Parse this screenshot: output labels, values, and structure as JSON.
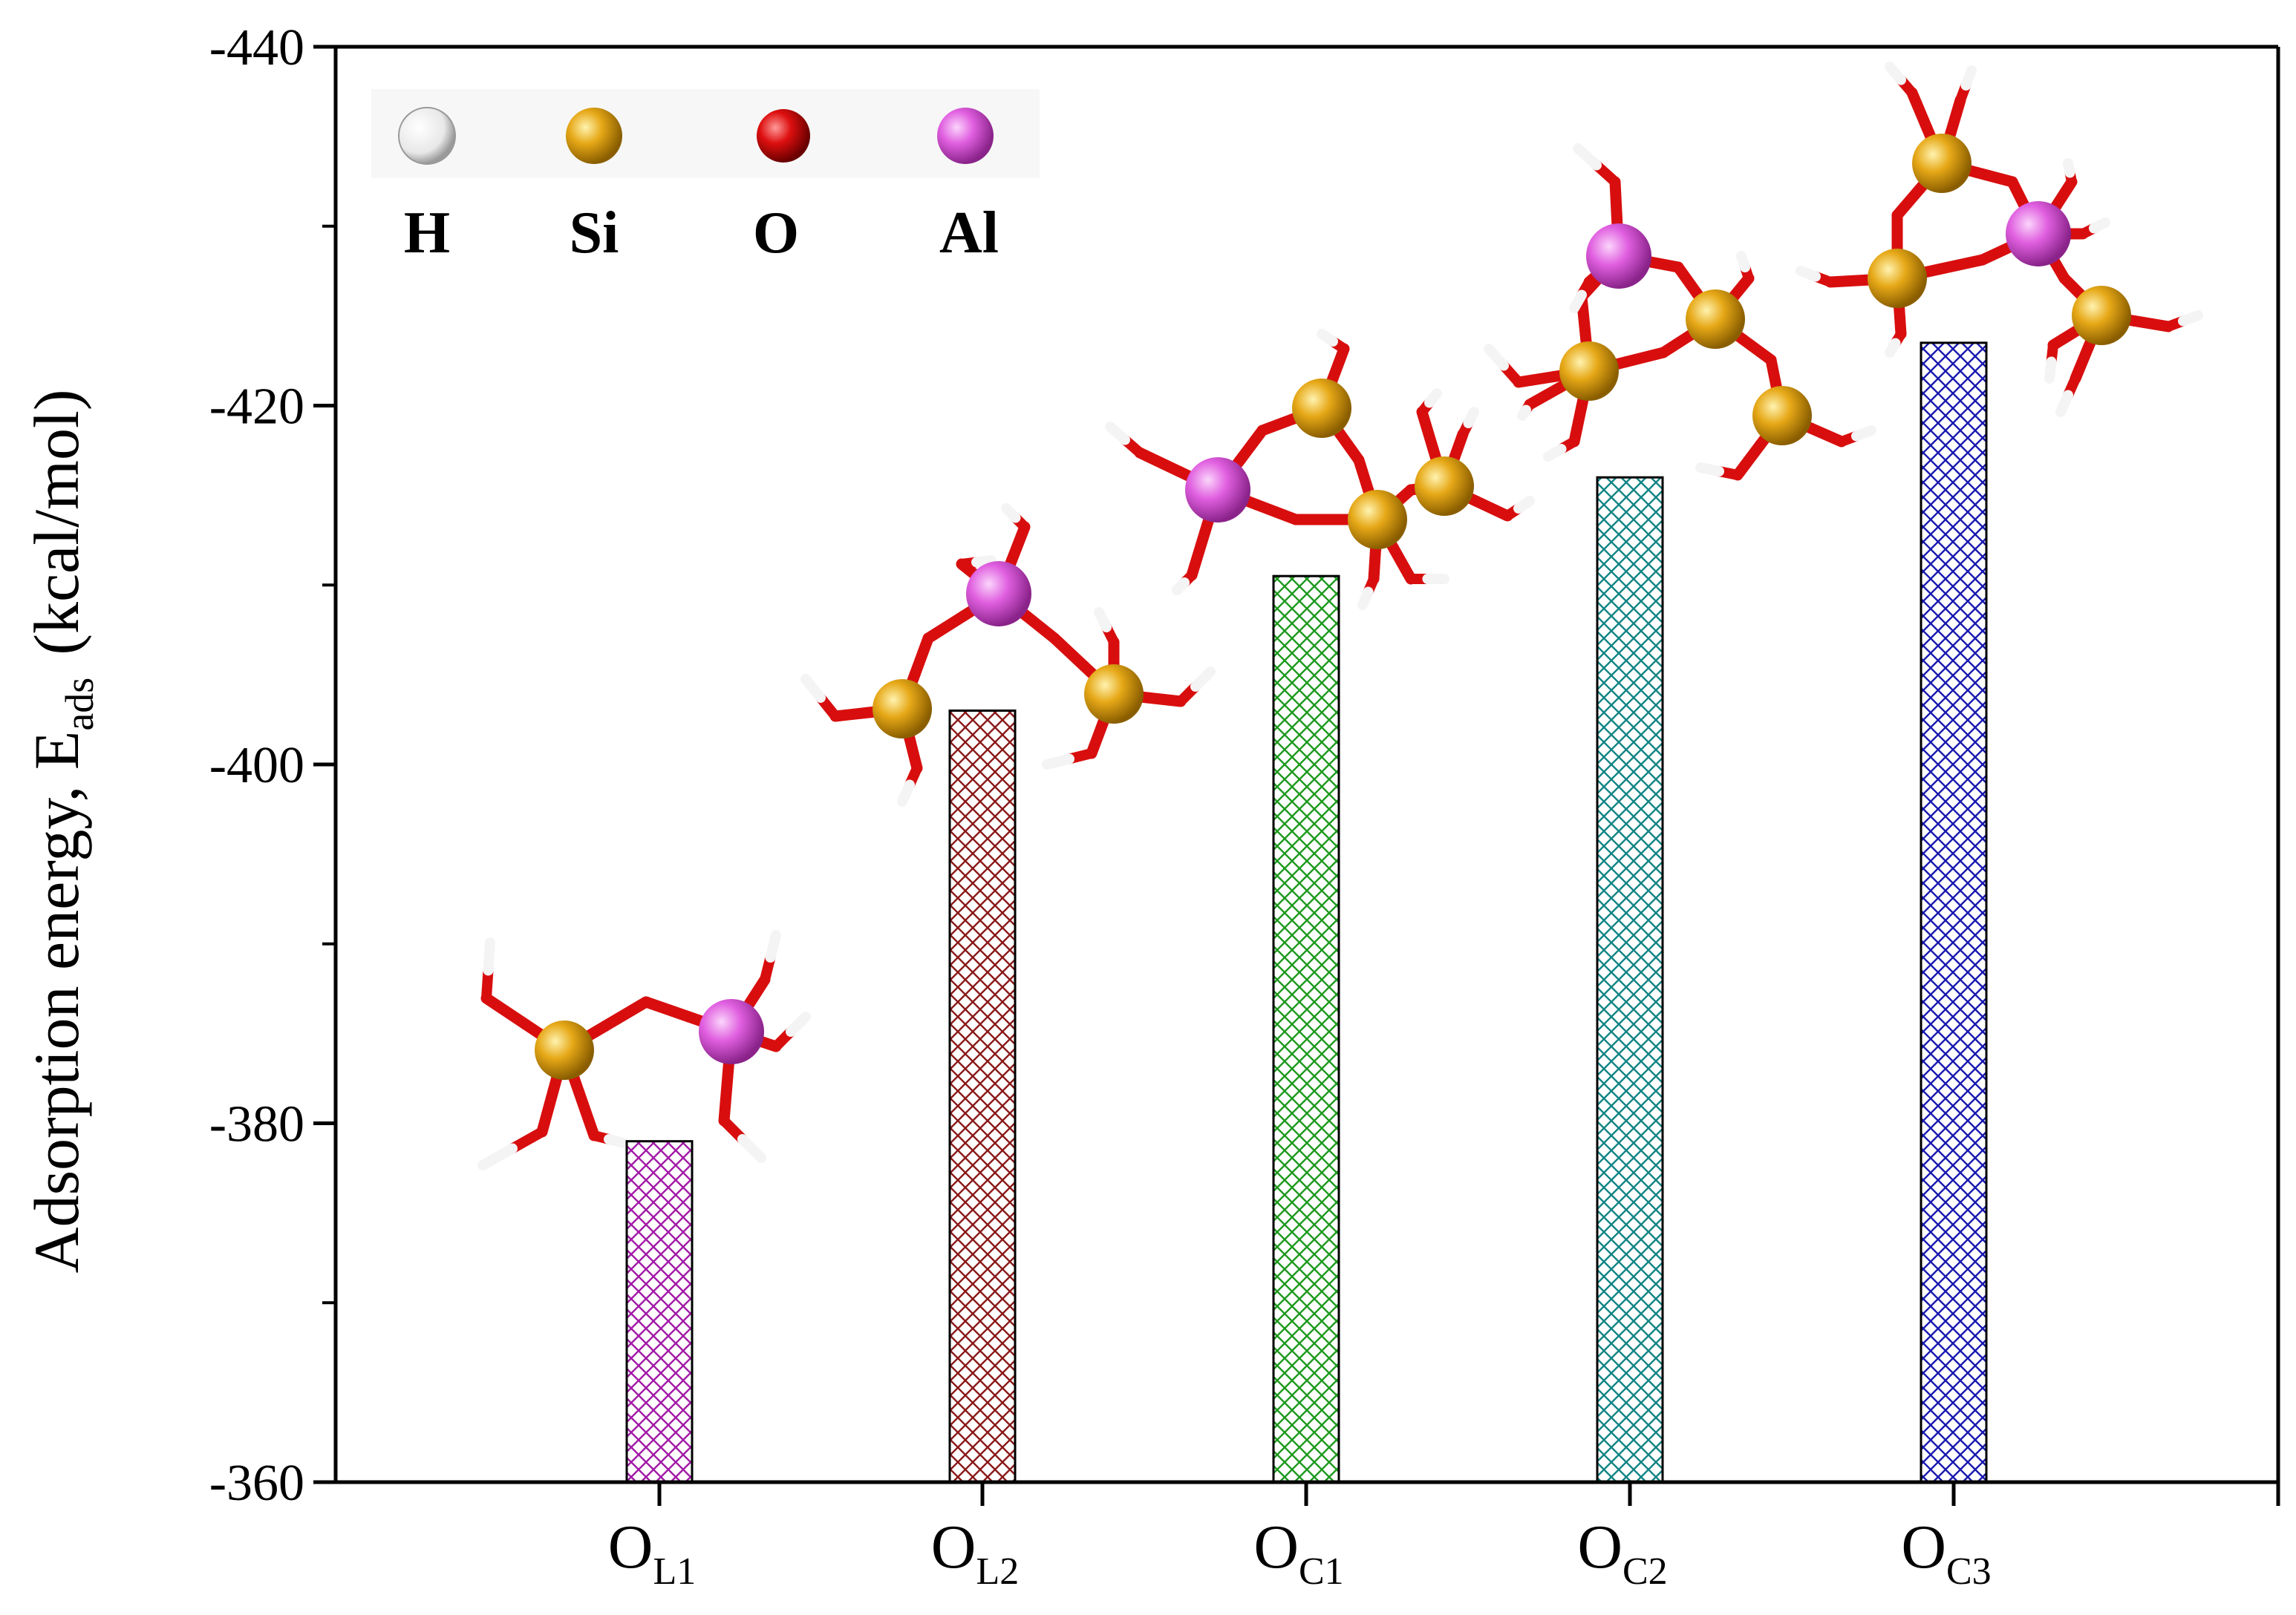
{
  "colors": {
    "bar_OL1": "#a21ba7",
    "bar_OL2": "#8b1a1a",
    "bar_OC1": "#1f9a1f",
    "bar_OC2": "#138585",
    "bar_OC3": "#1a1ab0",
    "H": "#f2f2f2",
    "Si": "#e6a817",
    "O": "#dd0f0f",
    "Al": "#e05fe0"
  },
  "legend": {
    "items": [
      {
        "label": "H",
        "color": "#f2f2f2"
      },
      {
        "label": "Si",
        "color": "#e6a817"
      },
      {
        "label": "O",
        "color": "#dd0f0f"
      },
      {
        "label": "Al",
        "color": "#e05fe0"
      }
    ]
  },
  "chart_data": {
    "type": "bar",
    "categories": [
      {
        "main": "O",
        "sub": "L1"
      },
      {
        "main": "O",
        "sub": "L2"
      },
      {
        "main": "O",
        "sub": "C1"
      },
      {
        "main": "O",
        "sub": "C2"
      },
      {
        "main": "O",
        "sub": "C3"
      }
    ],
    "values": [
      -379,
      -403,
      -410.5,
      -416,
      -423.5
    ],
    "ylabel_main": "Adsorption energy, E",
    "ylabel_sub": "ads",
    "ylabel_unit": "(kcal/mol)",
    "ylim": [
      -360,
      -440
    ],
    "yticks": [
      -360,
      -380,
      -400,
      -420,
      -440
    ],
    "ytick_labels": [
      "-360",
      "-380",
      "-400",
      "-420",
      "-440"
    ],
    "pattern": "crosshatch",
    "grid": false,
    "legend_placement": "top-left"
  }
}
